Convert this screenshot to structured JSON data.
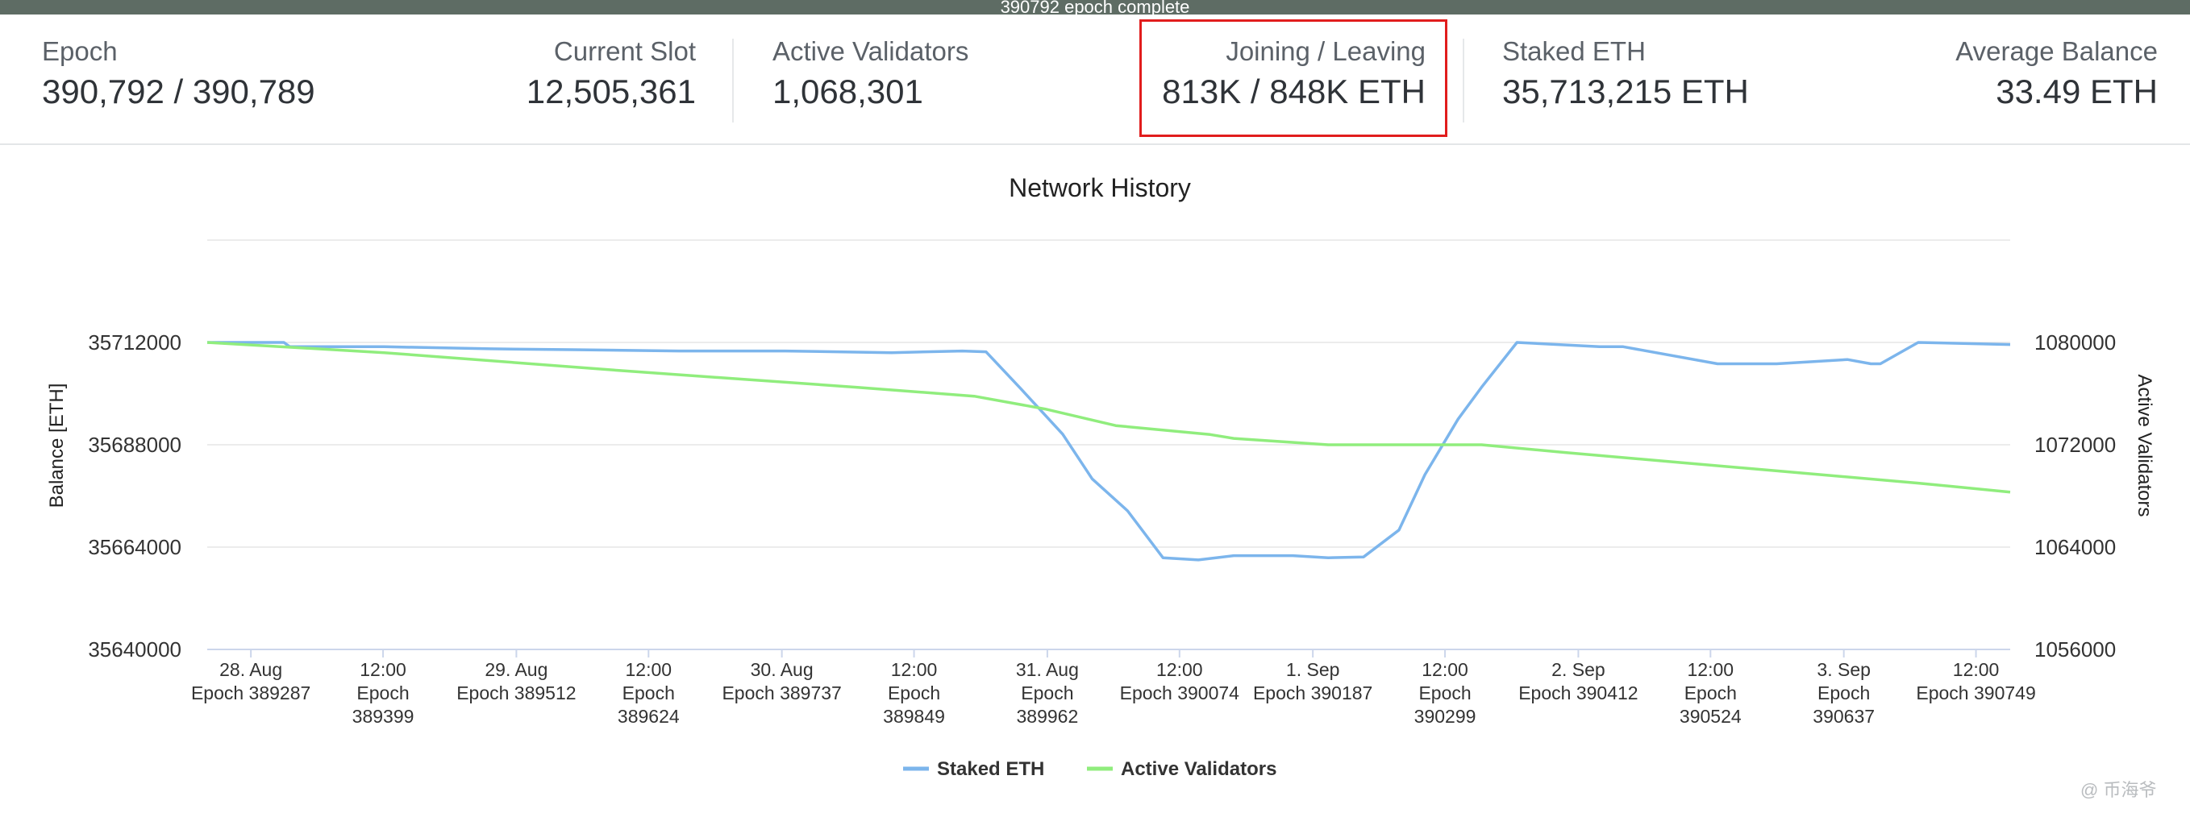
{
  "topbar": {
    "text": "390792 epoch complete"
  },
  "stats": {
    "epoch": {
      "label": "Epoch",
      "value": "390,792 / 390,789"
    },
    "current_slot": {
      "label": "Current Slot",
      "value": "12,505,361"
    },
    "active_validators": {
      "label": "Active Validators",
      "value": "1,068,301"
    },
    "joining_leaving": {
      "label": "Joining / Leaving",
      "value": "813K / 848K ETH"
    },
    "staked_eth": {
      "label": "Staked ETH",
      "value": "35,713,215 ETH"
    },
    "average_balance": {
      "label": "Average Balance",
      "value": "33.49 ETH"
    }
  },
  "colors": {
    "staked": "#7cb5ec",
    "validators": "#90ed7d",
    "highlight": "#e11d1d",
    "topbar": "#5e6c64"
  },
  "watermark": "@ 币海爷",
  "chart_data": {
    "type": "line",
    "title": "Network History",
    "ylabel": "Balance [ETH]",
    "y2label": "Active Validators",
    "ylim": [
      35640000,
      35736000
    ],
    "y2lim": [
      1056000,
      1088000
    ],
    "yticks": [
      "35640000",
      "35664000",
      "35688000",
      "35712000"
    ],
    "y2ticks": [
      "1056000",
      "1064000",
      "1072000",
      "1080000"
    ],
    "xlim": [
      389250,
      390778
    ],
    "xticks": [
      {
        "epoch": 389287,
        "line1": "28. Aug",
        "line2": "Epoch 389287",
        "line3": ""
      },
      {
        "epoch": 389399,
        "line1": "12:00",
        "line2": "Epoch",
        "line3": "389399"
      },
      {
        "epoch": 389512,
        "line1": "29. Aug",
        "line2": "Epoch 389512",
        "line3": ""
      },
      {
        "epoch": 389624,
        "line1": "12:00",
        "line2": "Epoch",
        "line3": "389624"
      },
      {
        "epoch": 389737,
        "line1": "30. Aug",
        "line2": "Epoch 389737",
        "line3": ""
      },
      {
        "epoch": 389849,
        "line1": "12:00",
        "line2": "Epoch",
        "line3": "389849"
      },
      {
        "epoch": 389962,
        "line1": "31. Aug",
        "line2": "Epoch",
        "line3": "389962"
      },
      {
        "epoch": 390074,
        "line1": "12:00",
        "line2": "Epoch 390074",
        "line3": ""
      },
      {
        "epoch": 390187,
        "line1": "1. Sep",
        "line2": "Epoch 390187",
        "line3": ""
      },
      {
        "epoch": 390299,
        "line1": "12:00",
        "line2": "Epoch",
        "line3": "390299"
      },
      {
        "epoch": 390412,
        "line1": "2. Sep",
        "line2": "Epoch 390412",
        "line3": ""
      },
      {
        "epoch": 390524,
        "line1": "12:00",
        "line2": "Epoch",
        "line3": "390524"
      },
      {
        "epoch": 390637,
        "line1": "3. Sep",
        "line2": "Epoch",
        "line3": "390637"
      },
      {
        "epoch": 390749,
        "line1": "12:00",
        "line2": "Epoch 390749",
        "line3": ""
      }
    ],
    "grid": true,
    "legend": "bottom-center",
    "series": [
      {
        "name": "Staked ETH",
        "axis": "left",
        "x": [
          389250,
          389315,
          389320,
          389400,
          389490,
          389560,
          389650,
          389740,
          389830,
          389890,
          389910,
          389940,
          389975,
          390000,
          390030,
          390060,
          390090,
          390120,
          390140,
          390170,
          390200,
          390230,
          390260,
          390282,
          390310,
          390330,
          390360,
          390430,
          390450,
          390530,
          390580,
          390640,
          390660,
          390668,
          390700,
          390778
        ],
        "values": [
          35712000,
          35712000,
          35711000,
          35711000,
          35710500,
          35710300,
          35710000,
          35710000,
          35709600,
          35710000,
          35709800,
          35701000,
          35690500,
          35680000,
          35672500,
          35661500,
          35661000,
          35662000,
          35662000,
          35662000,
          35661500,
          35661700,
          35668000,
          35681000,
          35694000,
          35701500,
          35712000,
          35711000,
          35711000,
          35707000,
          35707000,
          35708000,
          35707000,
          35707000,
          35712000,
          35711500
        ]
      },
      {
        "name": "Active Validators",
        "axis": "right",
        "x": [
          389250,
          389400,
          389600,
          389800,
          389900,
          389960,
          390020,
          390100,
          390120,
          390200,
          390300,
          390330,
          390400,
          390500,
          390600,
          390700,
          390778
        ],
        "values": [
          1080000,
          1079200,
          1077800,
          1076500,
          1075800,
          1074800,
          1073500,
          1072800,
          1072500,
          1072000,
          1072000,
          1072000,
          1071400,
          1070600,
          1069800,
          1069000,
          1068300
        ]
      }
    ]
  }
}
